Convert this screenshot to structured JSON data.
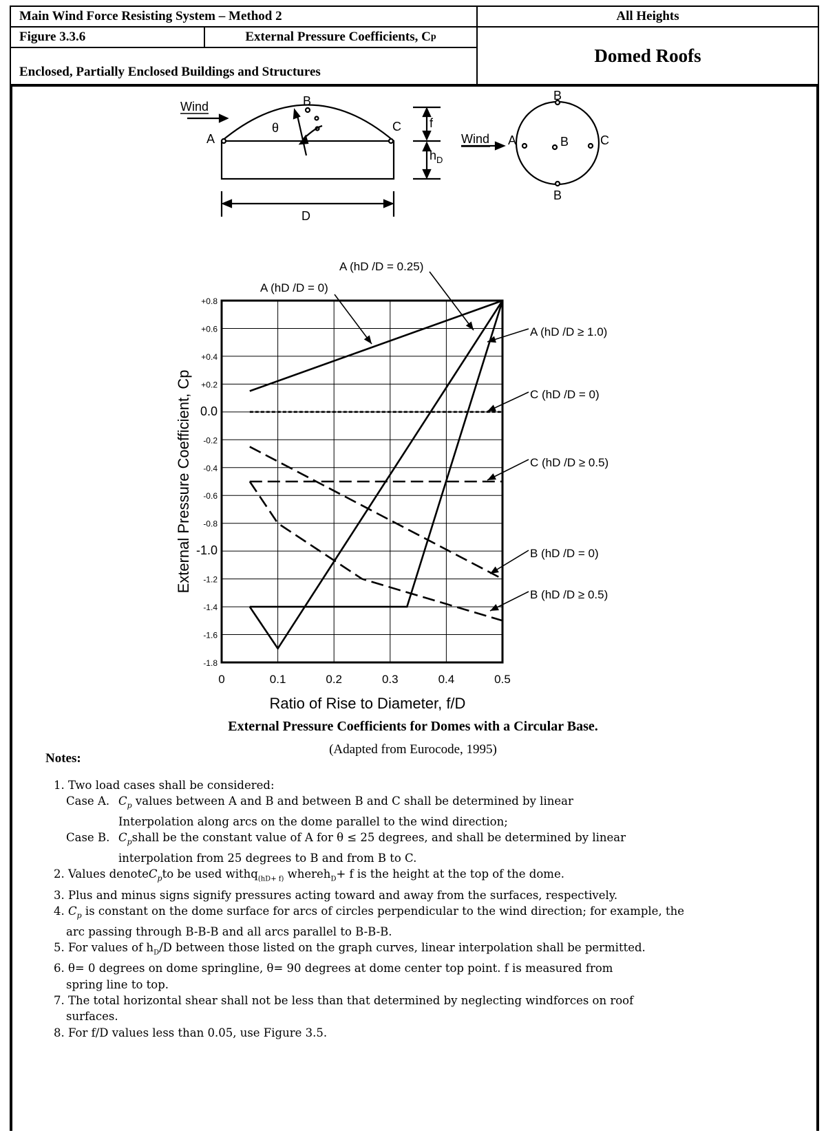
{
  "header": {
    "system": "Main Wind Force Resisting System – Method 2",
    "heights": "All Heights",
    "figure": "Figure 3.3.6",
    "coeff_title": "External Pressure Coefficients, C",
    "coeff_sub": "p",
    "buildings": "Enclosed, Partially Enclosed Buildings and Structures",
    "roof_type": "Domed Roofs"
  },
  "diagram": {
    "wind": "Wind",
    "A": "A",
    "B": "B",
    "C": "C",
    "theta": "θ",
    "f": "f",
    "h": "h",
    "h_sub": "D",
    "D": "D"
  },
  "chart_data": {
    "type": "line",
    "title": "External Pressure Coefficients for Domes with a Circular Base.",
    "subtitle": "(Adapted from Eurocode, 1995)",
    "xlabel": "Ratio of Rise to Diameter, f/D",
    "ylabel": "External Pressure Coefficient, Cp",
    "xlim": [
      0,
      0.5
    ],
    "ylim": [
      -1.8,
      0.8
    ],
    "x_ticks": [
      "0",
      "0.1",
      "0.2",
      "0.3",
      "0.4",
      "0.5"
    ],
    "y_ticks": [
      "+0.8",
      "+0.6",
      "+0.4",
      "+0.2",
      "0.0",
      "-0.2",
      "-0.4",
      "-0.6",
      "-0.8",
      "-1.0",
      "-1.2",
      "-1.4",
      "-1.6",
      "-1.8"
    ],
    "grid": true,
    "series": [
      {
        "name": "A (hD /D = 0)",
        "style": "solid",
        "x": [
          0.05,
          0.5
        ],
        "y": [
          0.15,
          0.8
        ]
      },
      {
        "name": "A (hD /D = 0.25)",
        "style": "solid",
        "x": [
          0.05,
          0.1,
          0.5
        ],
        "y": [
          -1.4,
          -1.7,
          0.8
        ]
      },
      {
        "name": "A (hD /D ≥ 1.0)",
        "style": "solid",
        "x": [
          0.05,
          0.33,
          0.5
        ],
        "y": [
          -1.4,
          -1.4,
          0.8
        ]
      },
      {
        "name": "C (hD /D = 0)",
        "style": "dotted",
        "x": [
          0.05,
          0.5
        ],
        "y": [
          0.0,
          0.0
        ]
      },
      {
        "name": "C (hD /D ≥ 0.5)",
        "style": "dashed",
        "x": [
          0.05,
          0.5
        ],
        "y": [
          -0.5,
          -0.5
        ]
      },
      {
        "name": "B (hD /D = 0)",
        "style": "dashed",
        "x": [
          0.05,
          0.5
        ],
        "y": [
          -0.25,
          -1.2
        ]
      },
      {
        "name": "B (hD /D ≥ 0.5)",
        "style": "dashed",
        "x": [
          0.05,
          0.1,
          0.25,
          0.5
        ],
        "y": [
          -0.5,
          -0.8,
          -1.2,
          -1.5
        ]
      }
    ],
    "annotations": [
      {
        "text": "A (hD /D = 0)",
        "series": 0
      },
      {
        "text": "A (hD /D = 0.25)",
        "series": 1
      },
      {
        "text": "A (hD /D ≥ 1.0)",
        "series": 2
      },
      {
        "text": "C (hD /D = 0)",
        "series": 3
      },
      {
        "text": "C (hD /D ≥ 0.5)",
        "series": 4
      },
      {
        "text": "B (hD /D = 0)",
        "series": 5
      },
      {
        "text": "B (hD /D ≥ 0.5)",
        "series": 6
      }
    ]
  },
  "notes": {
    "title": "Notes:",
    "n1": "1. Two load cases shall be considered:",
    "caseA_label": "Case A.",
    "caseA_text": "values between A and B and between B and C shall be determined by linear",
    "caseA_text2": "Interpolation along arcs on the dome parallel to the wind direction;",
    "caseB_label": "Case B.",
    "caseB_text": "shall be the constant value of A for θ ≤ 25 degrees, and shall be determined by linear",
    "caseB_text2": "interpolation from 25 degrees to B and from B to C.",
    "cp": "C",
    "cp_sub": "p",
    "n2a": "2. Values denote",
    "n2b": "to be used with",
    "n2q": "q",
    "n2qsub": "(hD+ f)",
    "n2c": " where",
    "n2h": "h",
    "n2hsub": "D",
    "n2d": "+ f",
    "n2e": "is the height at the top of the dome.",
    "n3": "3. Plus and minus signs signify pressures acting toward and away from the surfaces, respectively.",
    "n4a": "4. ",
    "n4b": " is constant on the dome surface for arcs of circles perpendicular to the wind direction; for example, the",
    "n4c": "arc passing through B-B-B and all arcs parallel to B-B-B.",
    "n5a": "5. For values of h",
    "n5sub": "D",
    "n5b": "/D between those listed on the graph curves, linear interpolation shall be permitted.",
    "n6a": "6. θ= 0 degrees on dome springline, θ= 90 degrees at dome center top point. f is measured from",
    "n6b": "spring line to top.",
    "n7a": "7. The total horizontal shear shall not be less than that determined by neglecting windforces on roof",
    "n7b": "surfaces.",
    "n8": "8. For f/D values less than 0.05, use Figure 3.5."
  }
}
